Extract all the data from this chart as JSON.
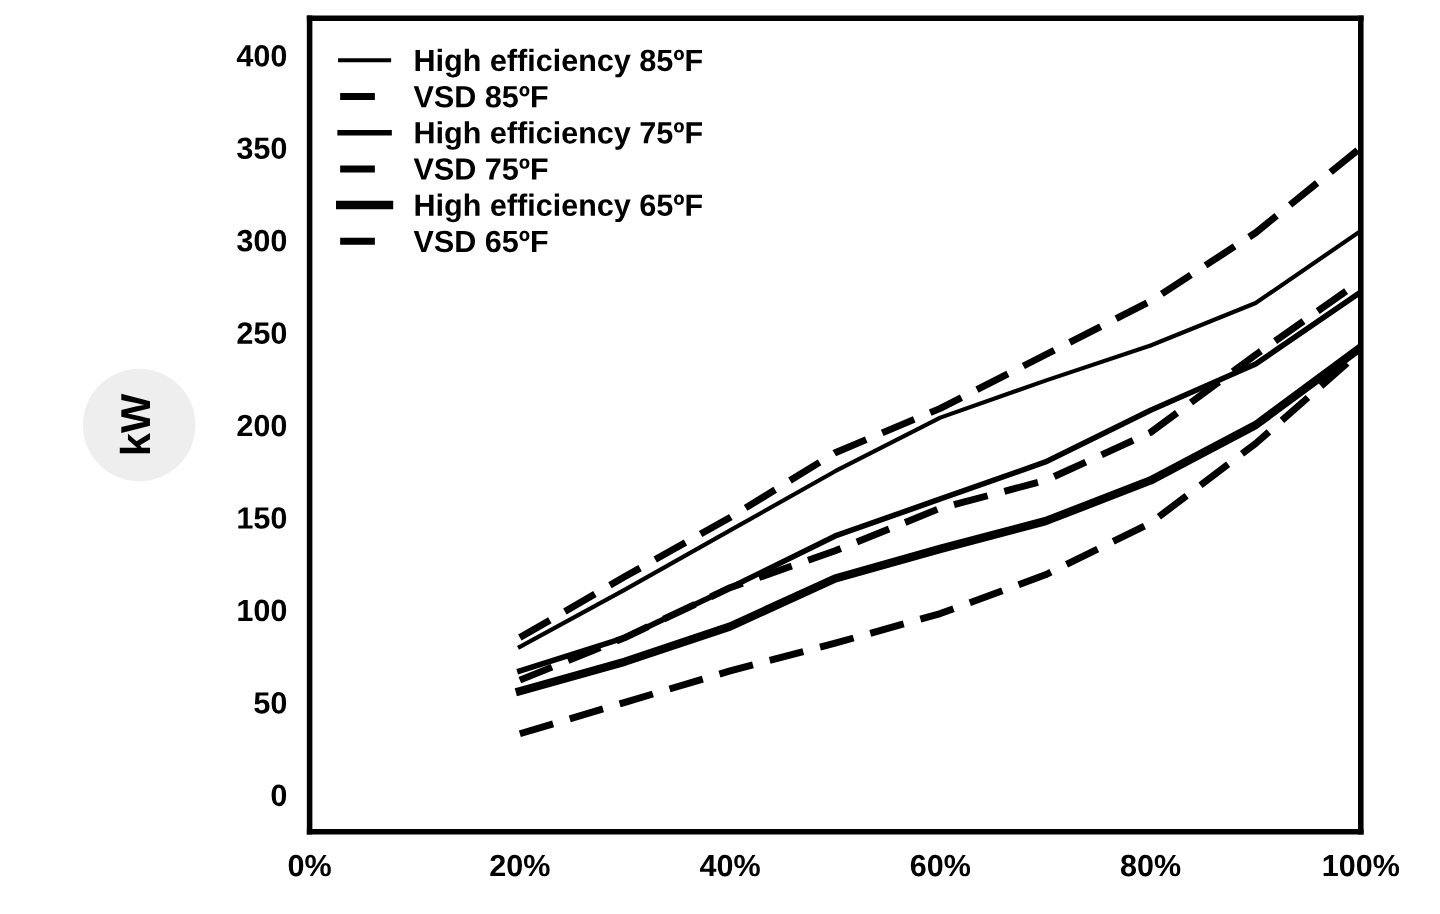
{
  "chart_data": {
    "type": "line",
    "ylabel": "kW",
    "x": [
      20,
      30,
      40,
      50,
      60,
      70,
      80,
      90,
      100
    ],
    "xlim": [
      0,
      100
    ],
    "xticks": [
      {
        "value": 0,
        "label": "0%"
      },
      {
        "value": 20,
        "label": "20%"
      },
      {
        "value": 40,
        "label": "40%"
      },
      {
        "value": 60,
        "label": "60%"
      },
      {
        "value": 80,
        "label": "80%"
      },
      {
        "value": 100,
        "label": "100%"
      }
    ],
    "ylim": [
      -20,
      420
    ],
    "yticks": [
      0,
      50,
      100,
      150,
      200,
      250,
      300,
      350,
      400
    ],
    "grid": false,
    "legend": "top left",
    "marker": "none",
    "series": [
      {
        "name": "High efficiency 85ºF",
        "color": "#000000",
        "line_style": "solid",
        "values": [
          80,
          111,
          143,
          175,
          204,
          224,
          243,
          266,
          305
        ]
      },
      {
        "name": "VSD 85ºF",
        "color": "#000000",
        "line_style": "dashed",
        "values": [
          85,
          118,
          150,
          185,
          209,
          238,
          267,
          304,
          350
        ]
      },
      {
        "name": "High efficiency 75ºF",
        "color": "#000000",
        "line_style": "solid",
        "values": [
          67,
          85,
          112,
          140,
          160,
          180,
          208,
          233,
          272
        ]
      },
      {
        "name": "VSD 75ºF",
        "color": "#000000",
        "line_style": "dashed",
        "values": [
          62,
          85,
          112,
          132,
          155,
          170,
          196,
          238,
          278
        ]
      },
      {
        "name": "High efficiency 65ºF",
        "color": "#000000",
        "line_style": "solid",
        "values": [
          56,
          72,
          91,
          117,
          133,
          148,
          170,
          200,
          242
        ]
      },
      {
        "name": "VSD 65ºF",
        "color": "#000000",
        "line_style": "dashed",
        "values": [
          33,
          50,
          67,
          82,
          98,
          119,
          147,
          190,
          240
        ]
      }
    ]
  }
}
